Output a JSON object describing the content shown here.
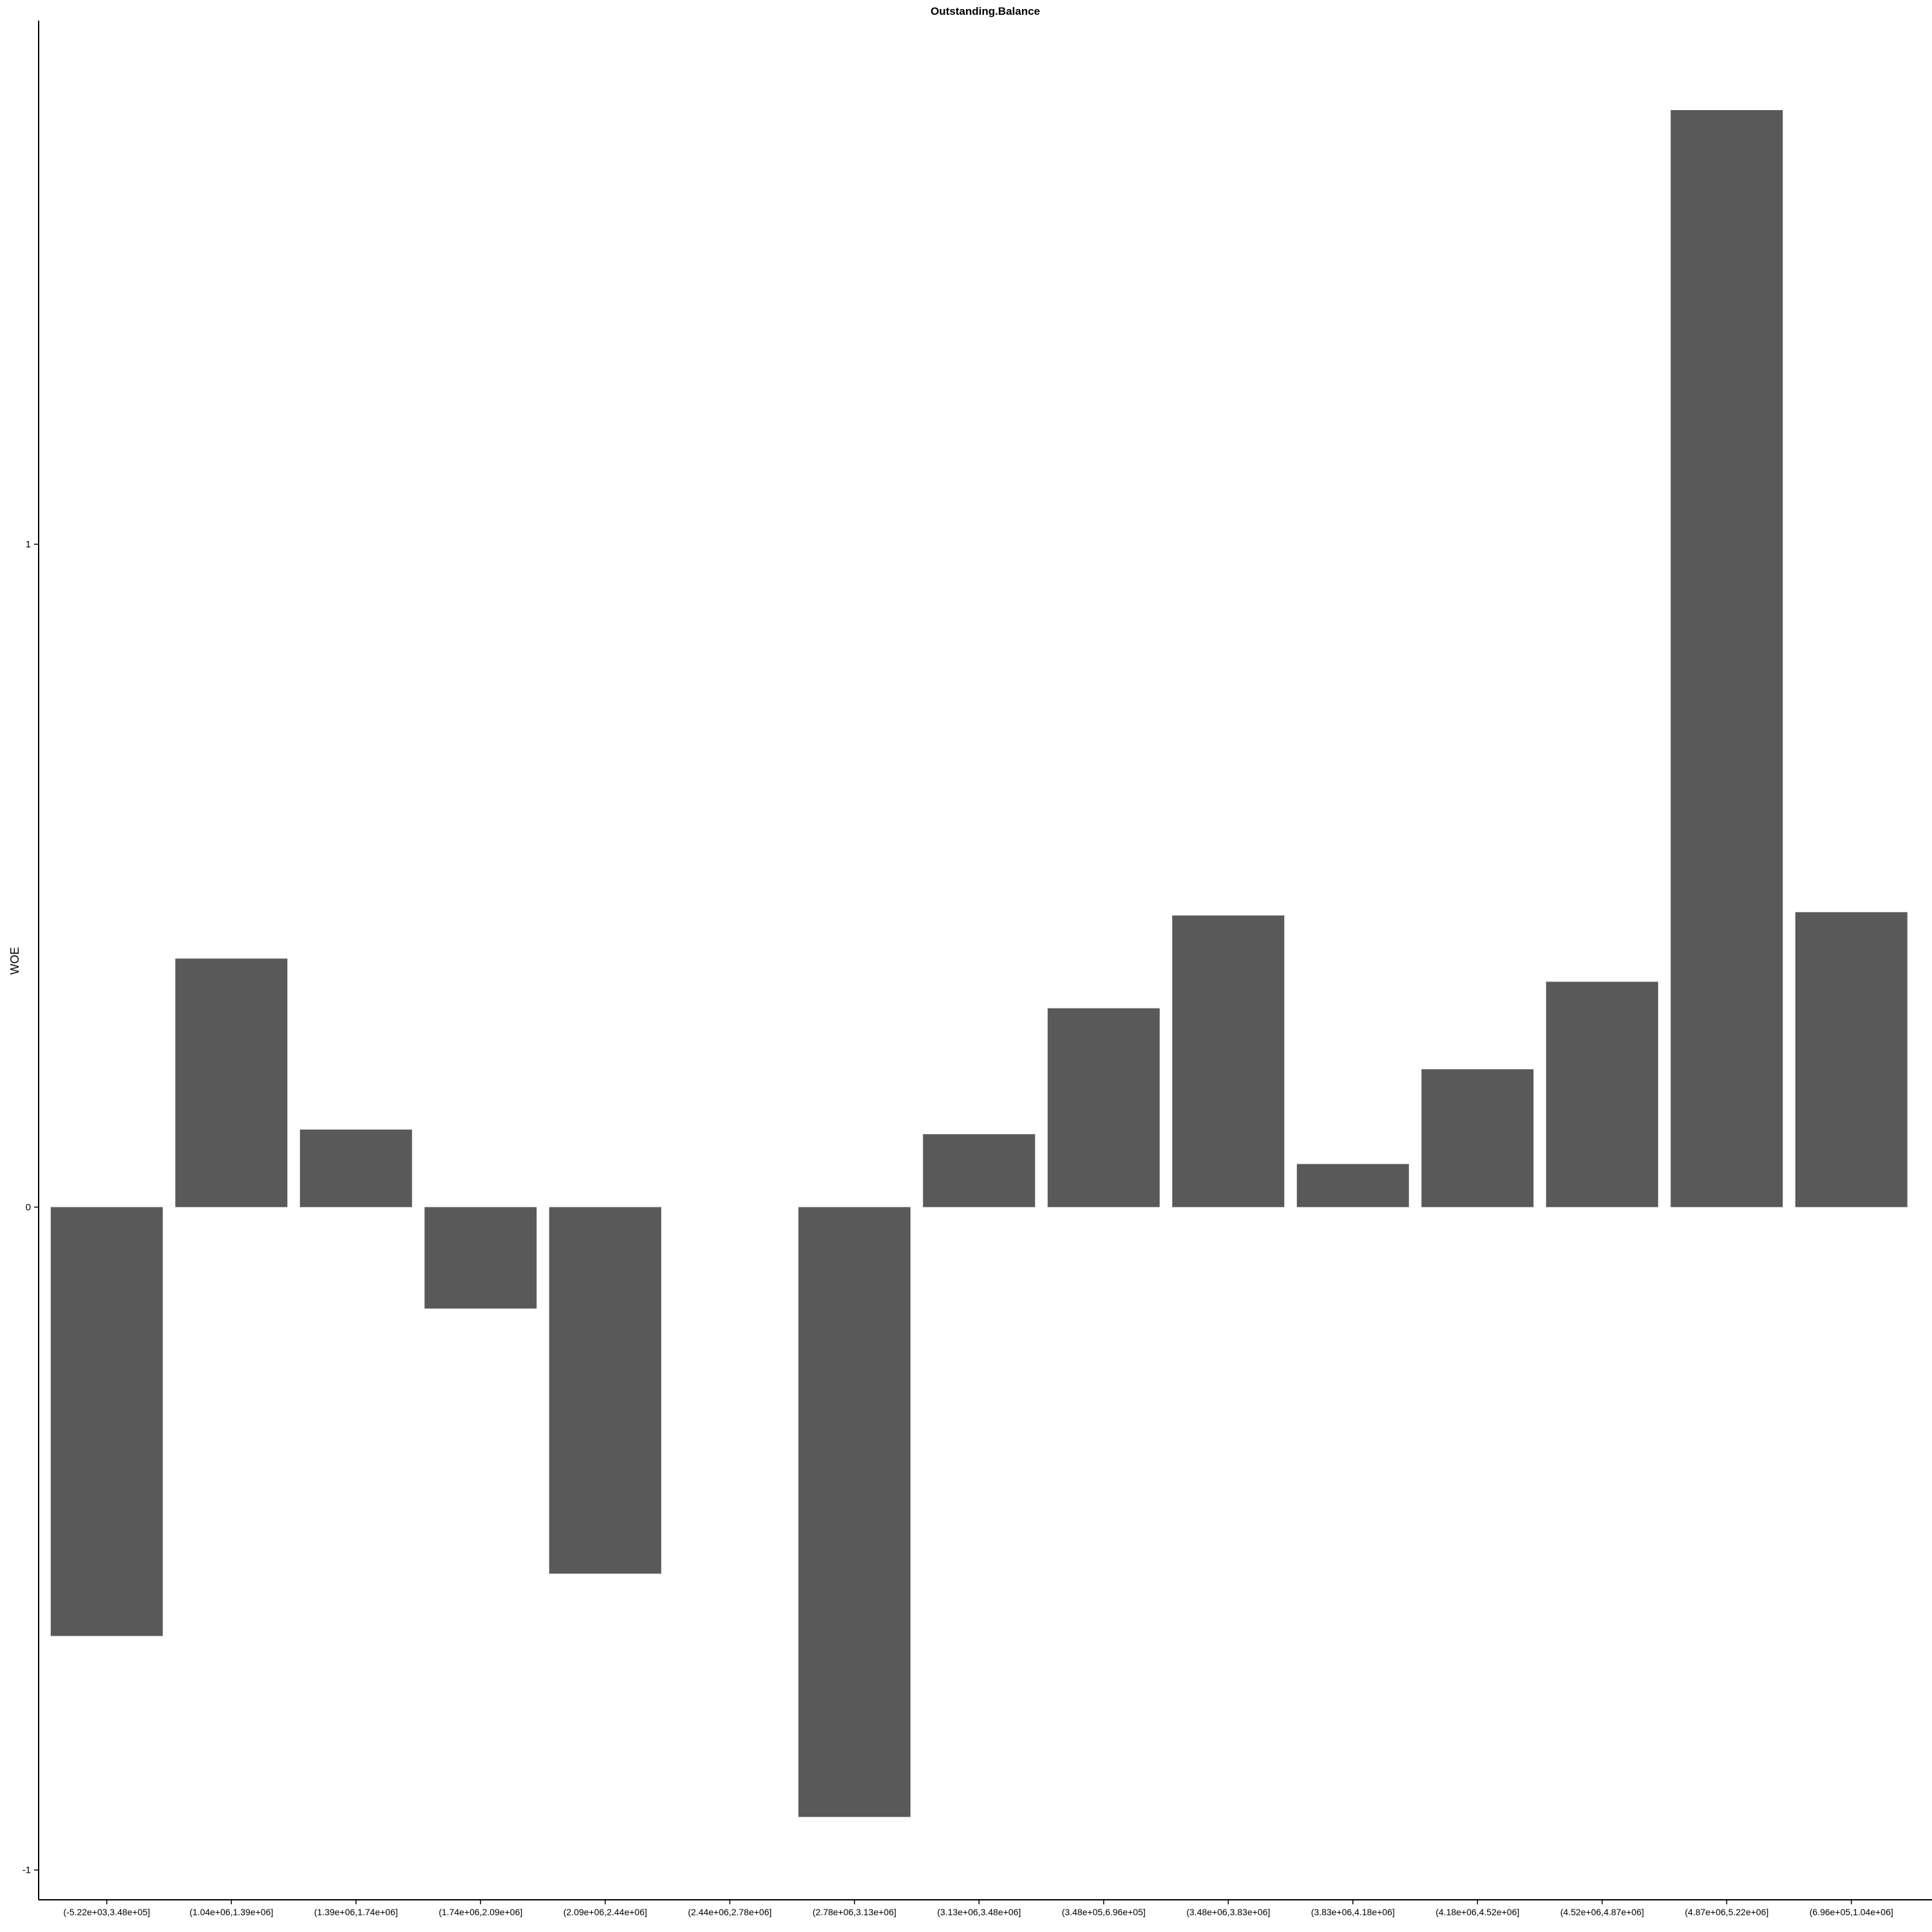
{
  "chart_data": {
    "type": "bar",
    "title": "Outstanding.Balance",
    "xlabel": "",
    "ylabel": "WOE",
    "categories": [
      "(-5.22e+03,3.48e+05]",
      "(1.04e+06,1.39e+06]",
      "(1.39e+06,1.74e+06]",
      "(1.74e+06,2.09e+06]",
      "(2.09e+06,2.44e+06]",
      "(2.44e+06,2.78e+06]",
      "(2.78e+06,3.13e+06]",
      "(3.13e+06,3.48e+06]",
      "(3.48e+05,6.96e+05]",
      "(3.48e+06,3.83e+06]",
      "(3.83e+06,4.18e+06]",
      "(4.18e+06,4.52e+06]",
      "(4.52e+06,4.87e+06]",
      "(4.87e+06,5.22e+06]",
      "(6.96e+05,1.04e+06]"
    ],
    "values": [
      -0.647,
      0.375,
      0.117,
      -0.153,
      -0.553,
      0.0,
      -0.92,
      0.11,
      0.3,
      0.44,
      0.065,
      0.208,
      0.34,
      1.655,
      0.445
    ],
    "yticks": [
      -1,
      0,
      1
    ],
    "ytick_labels": [
      "-1",
      "0",
      "1"
    ],
    "ylim": [
      -1.045,
      1.79
    ],
    "grid": false,
    "legend": "none",
    "bar_color": "#595959"
  }
}
